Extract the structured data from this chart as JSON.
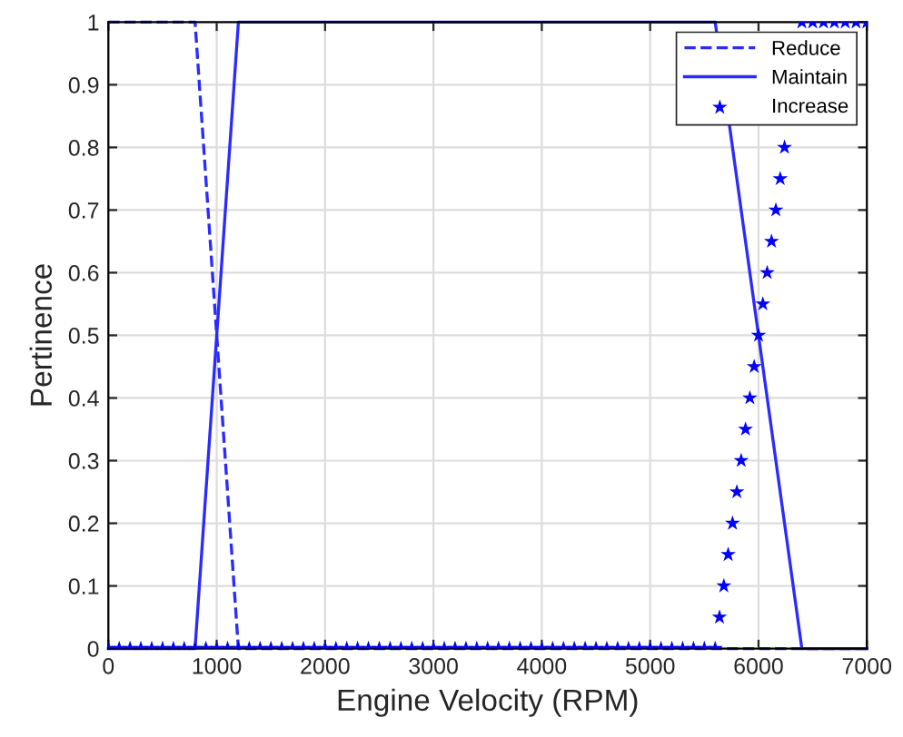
{
  "chart_data": {
    "type": "line",
    "xlabel": "Engine Velocity (RPM)",
    "ylabel": "Pertinence",
    "xlim": [
      0,
      7000
    ],
    "ylim": [
      0,
      1
    ],
    "xticks": [
      0,
      1000,
      2000,
      3000,
      4000,
      5000,
      6000,
      7000
    ],
    "yticks": [
      0,
      0.1,
      0.2,
      0.3,
      0.4,
      0.5,
      0.6,
      0.7,
      0.8,
      0.9,
      1
    ],
    "grid": true,
    "legend": "top right",
    "series": [
      {
        "name": "Reduce",
        "color": "#2b2bff",
        "line_style": "dashed",
        "x": [
          0,
          800,
          1200,
          7000
        ],
        "values": [
          1,
          1,
          0,
          0
        ]
      },
      {
        "name": "Maintain",
        "color": "#2b2bff",
        "line_style": "solid",
        "x": [
          0,
          800,
          1200,
          5600,
          6400,
          7000
        ],
        "values": [
          0,
          0,
          1,
          1,
          0,
          0
        ]
      },
      {
        "name": "Increase",
        "type": "scatter",
        "color": "#0000ff",
        "marker": "star",
        "x": [
          0,
          100,
          200,
          300,
          400,
          500,
          600,
          700,
          800,
          900,
          1000,
          1100,
          1200,
          1300,
          1400,
          1500,
          1600,
          1700,
          1800,
          1900,
          2000,
          2100,
          2200,
          2300,
          2400,
          2500,
          2600,
          2700,
          2800,
          2900,
          3000,
          3100,
          3200,
          3300,
          3400,
          3500,
          3600,
          3700,
          3800,
          3900,
          4000,
          4100,
          4200,
          4300,
          4400,
          4500,
          4600,
          4700,
          4800,
          4900,
          5000,
          5100,
          5200,
          5300,
          5400,
          5500,
          5600,
          5640,
          5680,
          5720,
          5760,
          5800,
          5840,
          5880,
          5920,
          5960,
          6000,
          6040,
          6080,
          6120,
          6160,
          6200,
          6240,
          6400,
          6500,
          6600,
          6700,
          6800,
          6900,
          7000
        ],
        "values": [
          0,
          0,
          0,
          0,
          0,
          0,
          0,
          0,
          0,
          0,
          0,
          0,
          0,
          0,
          0,
          0,
          0,
          0,
          0,
          0,
          0,
          0,
          0,
          0,
          0,
          0,
          0,
          0,
          0,
          0,
          0,
          0,
          0,
          0,
          0,
          0,
          0,
          0,
          0,
          0,
          0,
          0,
          0,
          0,
          0,
          0,
          0,
          0,
          0,
          0,
          0,
          0,
          0,
          0,
          0,
          0,
          0,
          0.05,
          0.1,
          0.15,
          0.2,
          0.25,
          0.3,
          0.35,
          0.4,
          0.45,
          0.5,
          0.55,
          0.6,
          0.65,
          0.7,
          0.75,
          0.8,
          1,
          1,
          1,
          1,
          1,
          1,
          1
        ]
      }
    ]
  }
}
